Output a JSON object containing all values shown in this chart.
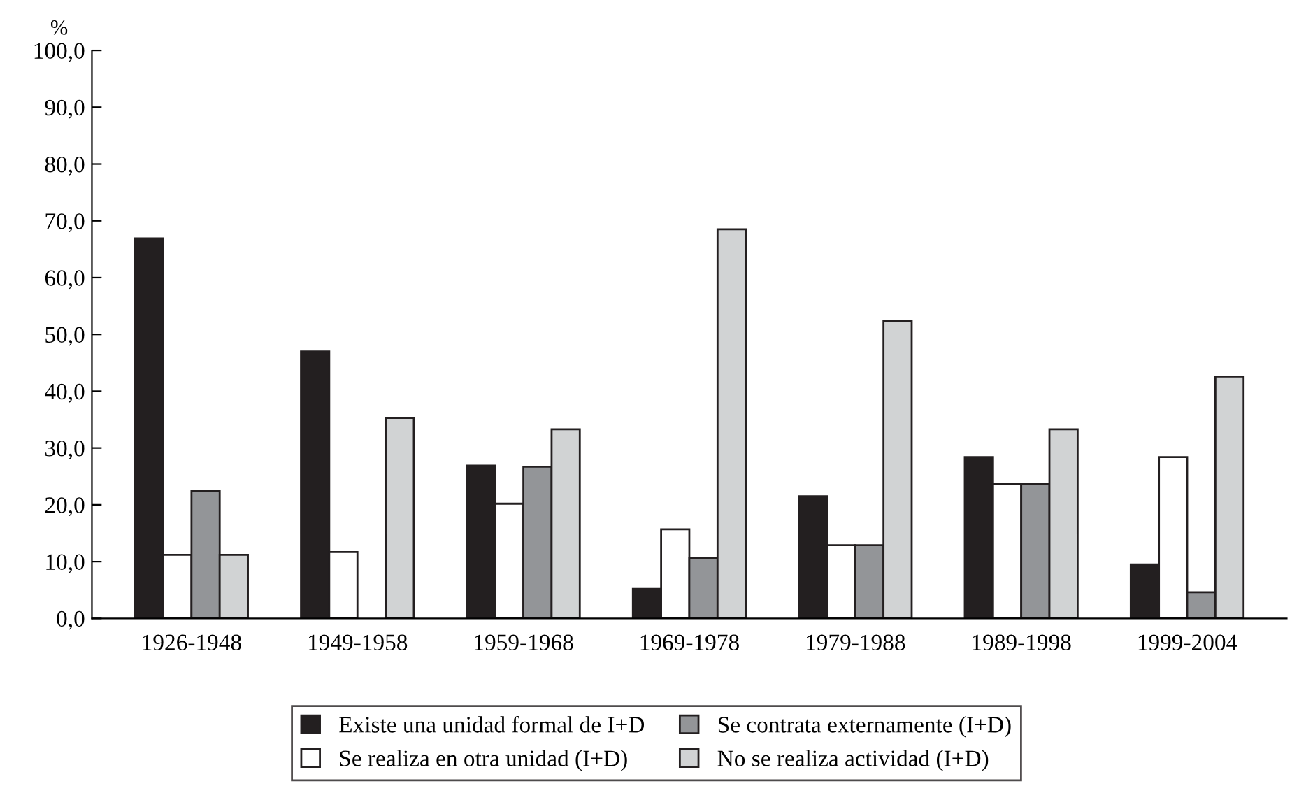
{
  "chart_data": {
    "type": "bar",
    "ylabel": "%",
    "categories": [
      "1926-1948",
      "1949-1958",
      "1959-1968",
      "1969-1978",
      "1979-1988",
      "1989-1998",
      "1999-2004"
    ],
    "series": [
      {
        "name": "Existe una unidad formal de I+D",
        "color": "#231f20",
        "values": [
          66.9,
          47.0,
          26.9,
          5.2,
          21.5,
          28.4,
          9.5
        ]
      },
      {
        "name": "Se realiza en otra unidad (I+D)",
        "color": "#ffffff",
        "values": [
          11.2,
          11.7,
          20.2,
          15.7,
          12.9,
          23.7,
          28.4
        ]
      },
      {
        "name": "Se contrata externamente (I+D)",
        "color": "#939598",
        "values": [
          22.4,
          null,
          26.7,
          10.6,
          12.9,
          23.7,
          4.6
        ]
      },
      {
        "name": "No se realiza actividad (I+D)",
        "color": "#d1d3d4",
        "values": [
          11.2,
          35.3,
          33.3,
          68.5,
          52.3,
          33.3,
          42.6
        ]
      }
    ],
    "ylim": [
      0,
      100
    ],
    "yticks": [
      {
        "value": 0,
        "label": "0,0"
      },
      {
        "value": 10,
        "label": "10,0"
      },
      {
        "value": 20,
        "label": "20,0"
      },
      {
        "value": 30,
        "label": "30,0"
      },
      {
        "value": 40,
        "label": "40,0"
      },
      {
        "value": 50,
        "label": "50,0"
      },
      {
        "value": 60,
        "label": "60,0"
      },
      {
        "value": 70,
        "label": "70,0"
      },
      {
        "value": 80,
        "label": "80,0"
      },
      {
        "value": 90,
        "label": "90,0"
      },
      {
        "value": 100,
        "label": "100,0"
      }
    ],
    "grid": false,
    "legend": "bottom"
  }
}
